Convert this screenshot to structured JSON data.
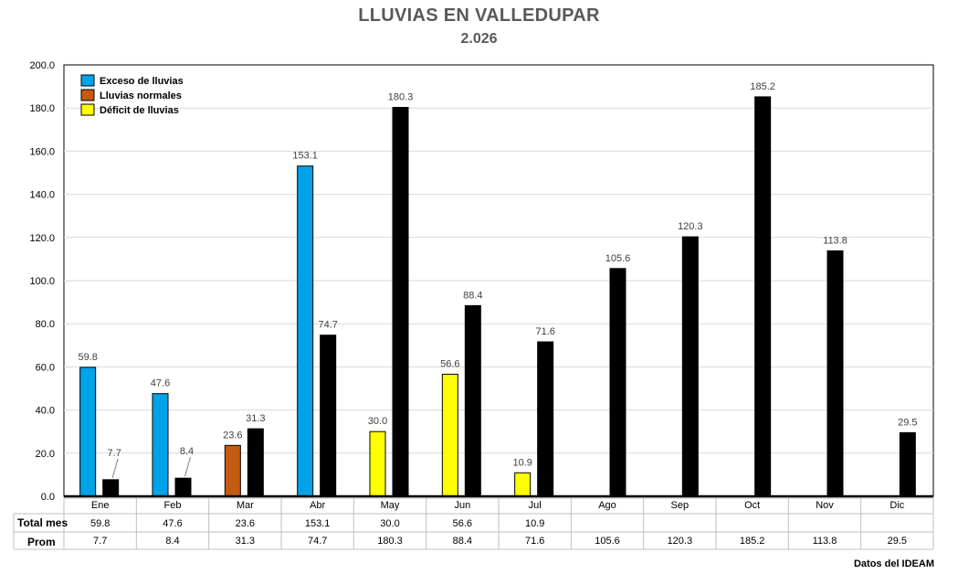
{
  "chart_data": {
    "type": "bar",
    "title": "LLUVIAS EN VALLEDUPAR",
    "subtitle": "2.026",
    "categories": [
      "Ene",
      "Feb",
      "Mar",
      "Abr",
      "May",
      "Jun",
      "Jul",
      "Ago",
      "Sep",
      "Oct",
      "Nov",
      "Dic"
    ],
    "ylim": [
      0,
      200
    ],
    "yticks": [
      "0.0",
      "20.0",
      "40.0",
      "60.0",
      "80.0",
      "100.0",
      "120.0",
      "140.0",
      "160.0",
      "180.0",
      "200.0"
    ],
    "grid": true,
    "legend_position": "top-left",
    "legend": [
      {
        "label": "Exceso de lluvias",
        "color": "#00a2e8"
      },
      {
        "label": "Lluvias normales",
        "color": "#c55a11"
      },
      {
        "label": "Déficit de lluvias",
        "color": "#ffff00"
      }
    ],
    "series": [
      {
        "name": "Total mes",
        "values": [
          59.8,
          47.6,
          23.6,
          153.1,
          30.0,
          56.6,
          10.9,
          null,
          null,
          null,
          null,
          null
        ],
        "labels": [
          "59.8",
          "47.6",
          "23.6",
          "153.1",
          "30.0",
          "56.6",
          "10.9",
          "",
          "",
          "",
          "",
          ""
        ],
        "colors": [
          "#00a2e8",
          "#00a2e8",
          "#c55a11",
          "#00a2e8",
          "#ffff00",
          "#ffff00",
          "#ffff00",
          null,
          null,
          null,
          null,
          null
        ]
      },
      {
        "name": "Prom",
        "values": [
          7.7,
          8.4,
          31.3,
          74.7,
          180.3,
          88.4,
          71.6,
          105.6,
          120.3,
          185.2,
          113.8,
          29.5
        ],
        "labels": [
          "7.7",
          "8.4",
          "31.3",
          "74.7",
          "180.3",
          "88.4",
          "71.6",
          "105.6",
          "120.3",
          "185.2",
          "113.8",
          "29.5"
        ],
        "color": "#000000"
      }
    ],
    "source": "Datos del IDEAM"
  }
}
